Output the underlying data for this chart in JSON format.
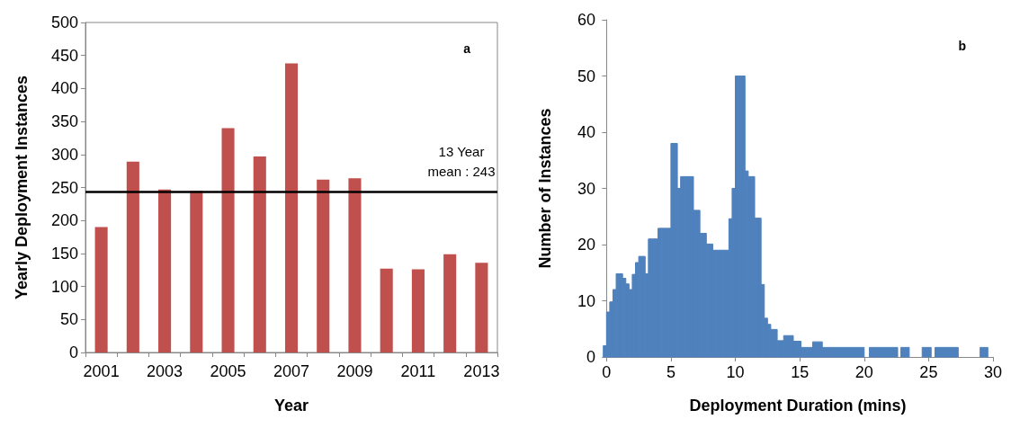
{
  "chart_data": [
    {
      "type": "bar",
      "categories": [
        "2001",
        null,
        "2003",
        null,
        "2005",
        null,
        "2007",
        null,
        "2009",
        null,
        "2011",
        null,
        "2013"
      ],
      "values": [
        190,
        289,
        247,
        245,
        340,
        297,
        438,
        262,
        264,
        127,
        126,
        149,
        136
      ],
      "color": "#c0504d",
      "xlabel": "Year",
      "ylabel": "Yearly Deployment Instances",
      "ylim": [
        0,
        500
      ],
      "yticks": [
        0,
        50,
        100,
        150,
        200,
        250,
        300,
        350,
        400,
        450,
        500
      ],
      "grid": false,
      "ref_lines": [
        {
          "axis": "y",
          "value": 243,
          "label": "13 Year\nmean : 243",
          "color": "#000000"
        }
      ],
      "annotations": [
        "a"
      ]
    },
    {
      "type": "histogram",
      "color": "#4f81bd",
      "xlabel": "Deployment Duration (mins)",
      "ylabel": "Number of Instances",
      "bins": [
        -0.25,
        0,
        0.25,
        0.5,
        0.75,
        1,
        1.25,
        1.5,
        1.75,
        2,
        2.25,
        2.5,
        2.75,
        3,
        3.25,
        3.5,
        3.75,
        4,
        4.25,
        4.5,
        4.75,
        5,
        5.25,
        5.5,
        5.75,
        6,
        6.25,
        6.5,
        6.75,
        7,
        7.25,
        7.5,
        7.75,
        8,
        8.25,
        8.5,
        8.75,
        9,
        9.25,
        9.5,
        9.75,
        10,
        10.25,
        10.5,
        10.75,
        11,
        11.25,
        11.5,
        11.75,
        12,
        12.25,
        12.5,
        12.75,
        13,
        13.25,
        13.5,
        13.75,
        14.5,
        15.1,
        16,
        16.75,
        20,
        20.4,
        22.6,
        22.85,
        23.5,
        24.5,
        25.2,
        25.5,
        27.3,
        29,
        29.6
      ],
      "values": [
        2,
        8,
        9.8,
        12,
        14.8,
        14.8,
        14,
        13,
        12,
        14.7,
        16.8,
        17.9,
        17.9,
        14.8,
        21,
        21,
        21,
        22.9,
        22.9,
        22.9,
        22.9,
        38,
        38,
        30,
        32.1,
        32.1,
        32.1,
        32.1,
        26.1,
        26.1,
        22,
        22,
        20.1,
        20.1,
        19,
        19,
        19,
        19,
        19,
        24.6,
        30,
        50,
        50,
        50,
        33.1,
        32.1,
        32.1,
        24.7,
        24.7,
        12.9,
        6.9,
        5.8,
        4.9,
        4.9,
        2.9,
        2.9,
        3.8,
        2.8,
        1.7,
        2.7,
        1.7,
        0,
        1.7,
        0,
        1.7,
        0,
        1.7,
        0,
        1.7,
        0,
        1.7
      ],
      "xlim": [
        -0.3,
        30
      ],
      "xticks": [
        0,
        5,
        10,
        15,
        20,
        25,
        30
      ],
      "ylim": [
        0,
        60
      ],
      "yticks": [
        0,
        10,
        20,
        30,
        40,
        50,
        60
      ],
      "grid": false,
      "annotations": [
        "b"
      ]
    }
  ]
}
